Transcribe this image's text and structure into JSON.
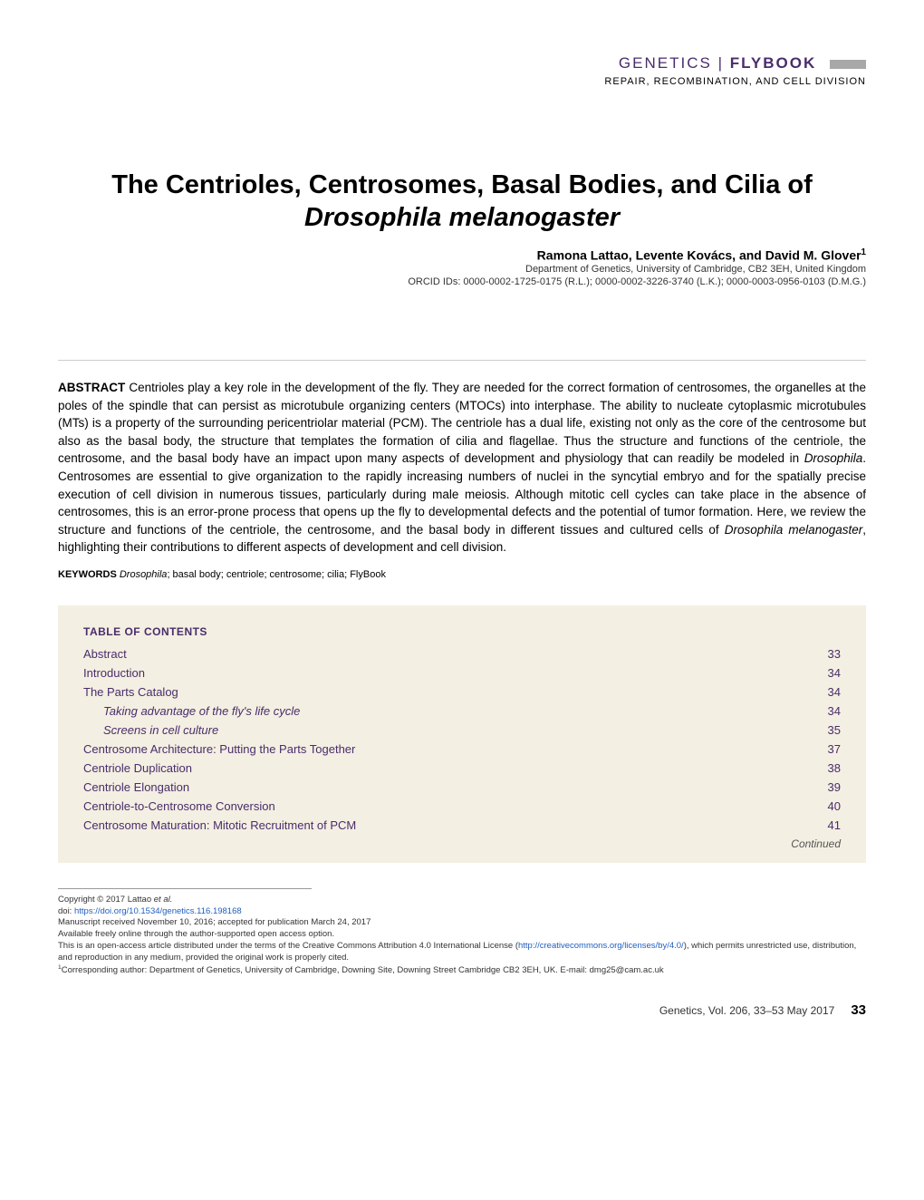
{
  "header": {
    "journal_name": "GENETICS",
    "separator": "|",
    "flybook": "FLYBOOK",
    "section": "REPAIR, RECOMBINATION, AND CELL DIVISION"
  },
  "title": {
    "line1": "The Centrioles, Centrosomes, Basal Bodies, and Cilia of",
    "line2_italic": "Drosophila melanogaster"
  },
  "authors": "Ramona Lattao, Levente Kovács, and David M. Glover",
  "author_sup": "1",
  "affiliation": "Department of Genetics, University of Cambridge, CB2 3EH, United Kingdom",
  "orcid": "ORCID IDs: 0000-0002-1725-0175 (R.L.); 0000-0002-3226-3740 (L.K.); 0000-0003-0956-0103 (D.M.G.)",
  "abstract": {
    "label": "ABSTRACT",
    "text_part1": " Centrioles play a key role in the development of the fly. They are needed for the correct formation of centrosomes, the organelles at the poles of the spindle that can persist as microtubule organizing centers (MTOCs) into interphase. The ability to nucleate cytoplasmic microtubules (MTs) is a property of the surrounding pericentriolar material (PCM). The centriole has a dual life, existing not only as the core of the centrosome but also as the basal body, the structure that templates the formation of cilia and flagellae. Thus the structure and functions of the centriole, the centrosome, and the basal body have an impact upon many aspects of development and physiology that can readily be modeled in ",
    "italic1": "Drosophila",
    "text_part2": ". Centrosomes are essential to give organization to the rapidly increasing numbers of nuclei in the syncytial embryo and for the spatially precise execution of cell division in numerous tissues, particularly during male meiosis. Although mitotic cell cycles can take place in the absence of centrosomes, this is an error-prone process that opens up the fly to developmental defects and the potential of tumor formation. Here, we review the structure and functions of the centriole, the centrosome, and the basal body in different tissues and cultured cells of ",
    "italic2": "Drosophila melanogaster",
    "text_part3": ", highlighting their contributions to different aspects of development and cell division."
  },
  "keywords": {
    "label": "KEYWORDS",
    "italic_term": "Drosophila",
    "rest": "; basal body; centriole; centrosome; cilia; FlyBook"
  },
  "toc": {
    "title": "TABLE OF CONTENTS",
    "items": [
      {
        "label": "Abstract",
        "page": "33",
        "level": 1
      },
      {
        "label": "Introduction",
        "page": "34",
        "level": 1
      },
      {
        "label": "The Parts Catalog",
        "page": "34",
        "level": 1
      },
      {
        "label": "Taking advantage of the fly's life cycle",
        "page": "34",
        "level": 2
      },
      {
        "label": "Screens in cell culture",
        "page": "35",
        "level": 2
      },
      {
        "label": "Centrosome Architecture: Putting the Parts Together",
        "page": "37",
        "level": 1
      },
      {
        "label": "Centriole Duplication",
        "page": "38",
        "level": 1
      },
      {
        "label": "Centriole Elongation",
        "page": "39",
        "level": 1
      },
      {
        "label": "Centriole-to-Centrosome Conversion",
        "page": "40",
        "level": 1
      },
      {
        "label": "Centrosome Maturation: Mitotic Recruitment of PCM",
        "page": "41",
        "level": 1
      }
    ],
    "continued": "Continued"
  },
  "footer": {
    "copyright_prefix": "Copyright © 2017 Lattao ",
    "copyright_italic": "et al.",
    "doi_label": "doi: ",
    "doi_link": "https://doi.org/10.1534/genetics.116.198168",
    "manuscript": "Manuscript received November 10, 2016; accepted for publication March 24, 2017",
    "available": "Available freely online through the author-supported open access option.",
    "license_part1": "This is an open-access article distributed under the terms of the Creative Commons Attribution 4.0 International License (",
    "license_link": "http://creativecommons.org/licenses/by/4.0/",
    "license_part2": "), which permits unrestricted use, distribution, and reproduction in any medium, provided the original work is properly cited.",
    "corresponding": "Corresponding author: Department of Genetics, University of Cambridge, Downing Site, Downing Street Cambridge CB2 3EH, UK. E-mail: dmg25@cam.ac.uk"
  },
  "page_footer": {
    "info": "Genetics, Vol. 206, 33–53   May 2017",
    "page_number": "33"
  },
  "colors": {
    "purple": "#4a2c6b",
    "toc_bg": "#f3efe2",
    "link": "#2060c0",
    "gray_bar": "#a8a8a8"
  }
}
